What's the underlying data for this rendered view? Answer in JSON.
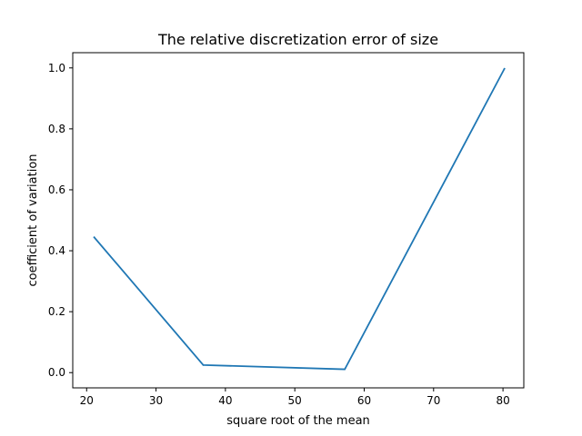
{
  "chart_data": {
    "type": "line",
    "title": "The relative discretization error of size",
    "xlabel": "square root of the mean",
    "ylabel": "coefficient of variation",
    "xlim": [
      18,
      83
    ],
    "ylim": [
      -0.05,
      1.05
    ],
    "x_ticks": [
      20,
      30,
      40,
      50,
      60,
      70,
      80
    ],
    "y_ticks": [
      0.0,
      0.2,
      0.4,
      0.6,
      0.8,
      1.0
    ],
    "x_tick_labels": [
      "20",
      "30",
      "40",
      "50",
      "60",
      "70",
      "80"
    ],
    "y_tick_labels": [
      "0.0",
      "0.2",
      "0.4",
      "0.6",
      "0.8",
      "1.0"
    ],
    "grid": false,
    "series": [
      {
        "color": "#1f77b4",
        "x": [
          21.1,
          36.8,
          57.2,
          80.2
        ],
        "y": [
          0.444,
          0.025,
          0.011,
          0.997
        ]
      }
    ]
  }
}
